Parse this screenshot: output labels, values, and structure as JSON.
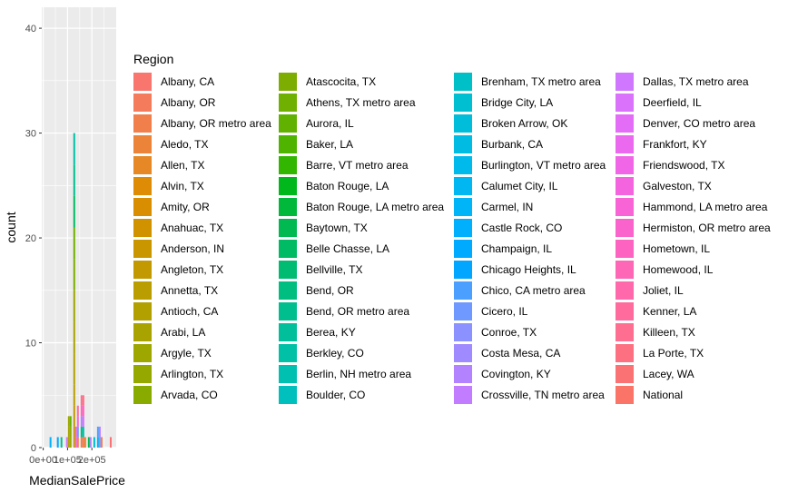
{
  "chart_data": {
    "type": "bar",
    "xlabel": "MedianSalePrice",
    "ylabel": "count",
    "ylim": [
      0,
      42
    ],
    "xlim": [
      -6000,
      300000
    ],
    "y_ticks": [
      0,
      10,
      20,
      30,
      40
    ],
    "y_tick_labels": [
      "0",
      "10",
      "20",
      "30",
      "40"
    ],
    "x_ticks": [
      0,
      100000,
      200000
    ],
    "x_tick_labels": [
      "0e+00",
      "1e+05",
      "2e+05"
    ],
    "grid": true,
    "legend_title": "Region",
    "legend_placement": "right",
    "bin_width": 7500,
    "bins": [
      {
        "x": 30000,
        "stack": [
          {
            "region": "Castle Rock, CO",
            "count": 1
          }
        ]
      },
      {
        "x": 60000,
        "stack": [
          {
            "region": "Chicago Heights, IL",
            "count": 1
          }
        ]
      },
      {
        "x": 75000,
        "stack": [
          {
            "region": "Berea, KY",
            "count": 1
          }
        ]
      },
      {
        "x": 97500,
        "stack": [
          {
            "region": "Dallas, TX metro area",
            "count": 1
          }
        ]
      },
      {
        "x": 105000,
        "stack": [
          {
            "region": "Antioch, CA",
            "count": 1
          },
          {
            "region": "Arabi, LA",
            "count": 1
          },
          {
            "region": "Argyle, TX",
            "count": 1
          }
        ]
      },
      {
        "x": 112500,
        "stack": [
          {
            "region": "Arlington, TX",
            "count": 1
          },
          {
            "region": "Arvada, CO",
            "count": 1
          },
          {
            "region": "Aurora, IL",
            "count": 1
          }
        ]
      },
      {
        "x": 127500,
        "stack": [
          {
            "region": "Anderson, IN",
            "count": 2
          },
          {
            "region": "Angleton, TX",
            "count": 2
          },
          {
            "region": "Annetta, TX",
            "count": 2
          },
          {
            "region": "Antioch, CA",
            "count": 3
          },
          {
            "region": "Arabi, LA",
            "count": 3
          },
          {
            "region": "Argyle, TX",
            "count": 3
          },
          {
            "region": "Atascocita, TX",
            "count": 3
          },
          {
            "region": "Athens, TX metro area",
            "count": 3
          },
          {
            "region": "Belle Chasse, LA",
            "count": 3
          },
          {
            "region": "Bend, OR metro area",
            "count": 3
          },
          {
            "region": "Berkley, CO",
            "count": 3
          }
        ]
      },
      {
        "x": 135000,
        "stack": [
          {
            "region": "Friendswood, TX",
            "count": 1
          },
          {
            "region": "Galveston, TX",
            "count": 1
          }
        ]
      },
      {
        "x": 142500,
        "stack": [
          {
            "region": "Albany, OR",
            "count": 1
          },
          {
            "region": "Cicero, IL",
            "count": 1
          },
          {
            "region": "Hammond, LA metro area",
            "count": 1
          },
          {
            "region": "Kenner, LA",
            "count": 1
          }
        ]
      },
      {
        "x": 157500,
        "stack": [
          {
            "region": "Aledo, TX",
            "count": 1
          },
          {
            "region": "Bellville, TX",
            "count": 1
          },
          {
            "region": "Costa Mesa, CA",
            "count": 1
          },
          {
            "region": "Homewood, IL",
            "count": 1
          },
          {
            "region": "Killeen, TX",
            "count": 1
          }
        ]
      },
      {
        "x": 165000,
        "stack": [
          {
            "region": "Albany, CA",
            "count": 1
          },
          {
            "region": "Boulder, CO",
            "count": 1
          },
          {
            "region": "Denver, CO metro area",
            "count": 1
          },
          {
            "region": "Hometown, IL",
            "count": 1
          },
          {
            "region": "La Porte, TX",
            "count": 1
          }
        ]
      },
      {
        "x": 172500,
        "stack": [
          {
            "region": "Allen, TX",
            "count": 1
          }
        ]
      },
      {
        "x": 187500,
        "stack": [
          {
            "region": "Baytown, TX",
            "count": 1
          }
        ]
      },
      {
        "x": 195000,
        "stack": [
          {
            "region": "Covington, KY",
            "count": 1
          }
        ]
      },
      {
        "x": 210000,
        "stack": [
          {
            "region": "Bridge City, LA",
            "count": 1
          }
        ]
      },
      {
        "x": 225000,
        "stack": [
          {
            "region": "Carmel, IN",
            "count": 1
          },
          {
            "region": "Chico, CA metro area",
            "count": 1
          }
        ]
      },
      {
        "x": 232500,
        "stack": [
          {
            "region": "Conroe, TX",
            "count": 1
          },
          {
            "region": "Crossville, TN metro area",
            "count": 1
          }
        ]
      },
      {
        "x": 240000,
        "stack": [
          {
            "region": "Albany, OR metro area",
            "count": 1
          }
        ]
      },
      {
        "x": 277500,
        "stack": [
          {
            "region": "Lacey, WA",
            "count": 1
          }
        ]
      }
    ],
    "legend": [
      {
        "label": "Albany, CA",
        "color": "#F8766D"
      },
      {
        "label": "Albany, OR",
        "color": "#F57B5D"
      },
      {
        "label": "Albany, OR metro area",
        "color": "#F17F4C"
      },
      {
        "label": "Aledo, TX",
        "color": "#EB8339"
      },
      {
        "label": "Allen, TX",
        "color": "#E58825"
      },
      {
        "label": "Alvin, TX",
        "color": "#DE8C06"
      },
      {
        "label": "Amity, OR",
        "color": "#D88E00"
      },
      {
        "label": "Anahuac, TX",
        "color": "#D19200"
      },
      {
        "label": "Anderson, IN",
        "color": "#CA9600"
      },
      {
        "label": "Angleton, TX",
        "color": "#C29900"
      },
      {
        "label": "Annetta, TX",
        "color": "#BA9D00"
      },
      {
        "label": "Antioch, CA",
        "color": "#B1A000"
      },
      {
        "label": "Arabi, LA",
        "color": "#A8A300"
      },
      {
        "label": "Argyle, TX",
        "color": "#9EA600"
      },
      {
        "label": "Arlington, TX",
        "color": "#94A800"
      },
      {
        "label": "Arvada, CO",
        "color": "#89AB00"
      },
      {
        "label": "Atascocita, TX",
        "color": "#7DAD00"
      },
      {
        "label": "Athens, TX metro area",
        "color": "#70B000"
      },
      {
        "label": "Aurora, IL",
        "color": "#61B200"
      },
      {
        "label": "Baker, LA",
        "color": "#4EB400"
      },
      {
        "label": "Barre, VT metro area",
        "color": "#33B600"
      },
      {
        "label": "Baton Rouge, LA",
        "color": "#00B81B"
      },
      {
        "label": "Baton Rouge, LA metro area",
        "color": "#00B93B"
      },
      {
        "label": "Baytown, TX",
        "color": "#00BA51"
      },
      {
        "label": "Belle Chasse, LA",
        "color": "#00BB63"
      },
      {
        "label": "Bellville, TX",
        "color": "#00BC72"
      },
      {
        "label": "Bend, OR",
        "color": "#00BD80"
      },
      {
        "label": "Bend, OR metro area",
        "color": "#00BE8E"
      },
      {
        "label": "Berea, KY",
        "color": "#00BF9A"
      },
      {
        "label": "Berkley, CO",
        "color": "#00C0A6"
      },
      {
        "label": "Berlin, NH metro area",
        "color": "#00C0B2"
      },
      {
        "label": "Boulder, CO",
        "color": "#00C0BD"
      },
      {
        "label": "Brenham, TX metro area",
        "color": "#00C0C7"
      },
      {
        "label": "Bridge City, LA",
        "color": "#00BFD1"
      },
      {
        "label": "Broken Arrow, OK",
        "color": "#00BEDA"
      },
      {
        "label": "Burbank, CA",
        "color": "#00BCE3"
      },
      {
        "label": "Burlington, VT metro area",
        "color": "#00BAEB"
      },
      {
        "label": "Calumet City, IL",
        "color": "#00B7F2"
      },
      {
        "label": "Carmel, IN",
        "color": "#00B4F8"
      },
      {
        "label": "Castle Rock, CO",
        "color": "#00B0FD"
      },
      {
        "label": "Champaign, IL",
        "color": "#00ABFF"
      },
      {
        "label": "Chicago Heights, IL",
        "color": "#00A6FF"
      },
      {
        "label": "Chico, CA metro area",
        "color": "#4BA0FF"
      },
      {
        "label": "Cicero, IL",
        "color": "#7099FF"
      },
      {
        "label": "Conroe, TX",
        "color": "#8B92FF"
      },
      {
        "label": "Costa Mesa, CA",
        "color": "#A08AFF"
      },
      {
        "label": "Covington, KY",
        "color": "#B282FF"
      },
      {
        "label": "Crossville, TN metro area",
        "color": "#C17CFF"
      },
      {
        "label": "Dallas, TX metro area",
        "color": "#CF78FF"
      },
      {
        "label": "Deerfield, IL",
        "color": "#DA72FC"
      },
      {
        "label": "Denver, CO metro area",
        "color": "#E36DF6"
      },
      {
        "label": "Frankfort, KY",
        "color": "#EA69EF"
      },
      {
        "label": "Friendswood, TX",
        "color": "#F066E7"
      },
      {
        "label": "Galveston, TX",
        "color": "#F564DF"
      },
      {
        "label": "Hammond, LA metro area",
        "color": "#F863D6"
      },
      {
        "label": "Hermiston, OR metro area",
        "color": "#FB63CC"
      },
      {
        "label": "Hometown, IL",
        "color": "#FD64C1"
      },
      {
        "label": "Homewood, IL",
        "color": "#FE66B6"
      },
      {
        "label": "Joliet, IL",
        "color": "#FF68AA"
      },
      {
        "label": "Kenner, LA",
        "color": "#FF6B9D"
      },
      {
        "label": "Killeen, TX",
        "color": "#FE6E90"
      },
      {
        "label": "La Porte, TX",
        "color": "#FC7082"
      },
      {
        "label": "Lacey, WA",
        "color": "#FB7274"
      },
      {
        "label": "National",
        "color": "#FA7468"
      }
    ]
  }
}
